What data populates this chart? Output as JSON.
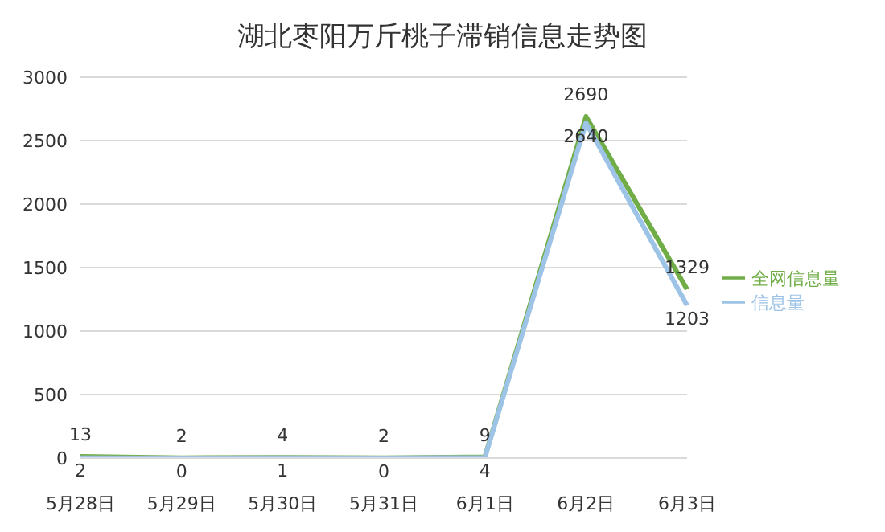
{
  "chart_data": {
    "type": "line",
    "title": "湖北枣阳万斤桃子滞销信息走势图",
    "categories": [
      "5月28日",
      "5月29日",
      "5月30日",
      "5月31日",
      "6月1日",
      "6月2日",
      "6月3日"
    ],
    "series": [
      {
        "name": "全网信息量",
        "color": "#70ad47",
        "values": [
          13,
          2,
          4,
          2,
          9,
          2690,
          1329
        ]
      },
      {
        "name": "信息量",
        "color": "#9dc3e6",
        "values": [
          2,
          0,
          1,
          0,
          4,
          2640,
          1203
        ]
      }
    ],
    "ylim": [
      0,
      3000
    ],
    "yticks": [
      0,
      500,
      1000,
      1500,
      2000,
      2500,
      3000
    ],
    "grid": "y",
    "legend": "right",
    "marker": "none",
    "data_labels": true
  }
}
